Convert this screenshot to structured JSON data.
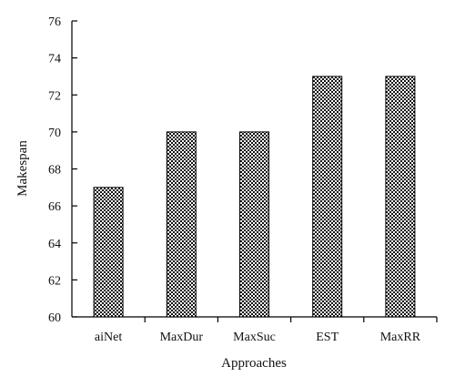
{
  "chart_data": {
    "type": "bar",
    "categories": [
      "aiNet",
      "MaxDur",
      "MaxSuc",
      "EST",
      "MaxRR"
    ],
    "values": [
      67,
      70,
      70,
      73,
      73
    ],
    "title": "",
    "xlabel": "Approaches",
    "ylabel": "Makespan",
    "ylim": [
      60,
      76
    ],
    "yticks": [
      60,
      62,
      64,
      66,
      68,
      70,
      72,
      74,
      76
    ],
    "grid": false,
    "legend": "none",
    "bar_fill": "dotted-pattern",
    "colors": {
      "bar_dark": "#111111",
      "bar_light": "#ffffff",
      "axis": "#000000"
    }
  }
}
